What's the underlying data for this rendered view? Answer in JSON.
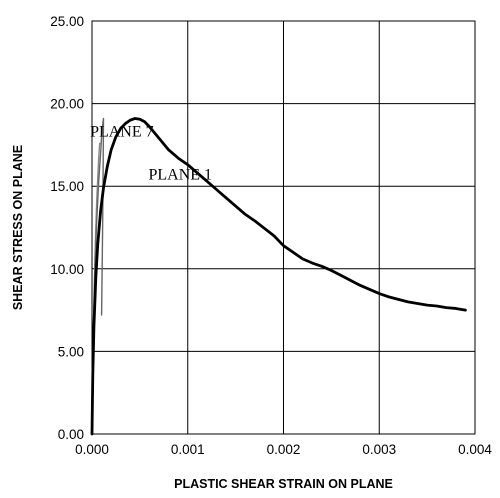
{
  "chart_data": {
    "type": "line",
    "xlabel": "PLASTIC SHEAR  STRAIN ON PLANE",
    "ylabel": "SHEAR STRESS ON PLANE",
    "xlim": [
      0,
      0.004
    ],
    "ylim": [
      0,
      25
    ],
    "x_ticks": [
      0,
      0.001,
      0.002,
      0.003,
      0.004
    ],
    "x_tick_labels": [
      "0.000",
      "0.001",
      "0.002",
      "0.003",
      "0.004"
    ],
    "y_ticks": [
      0,
      5,
      10,
      15,
      20,
      25
    ],
    "y_tick_labels": [
      "0.00",
      "5.00",
      "10.00",
      "15.00",
      "20.00",
      "25.00"
    ],
    "grid": true,
    "legend": "none",
    "annotations": [
      {
        "text": "PLANE 7",
        "x": -2e-05,
        "y": 18.0
      },
      {
        "text": "PLANE 1",
        "x": 0.00059,
        "y": 15.4
      }
    ],
    "series": [
      {
        "color": "#000000",
        "x": [
          0,
          8e-06,
          2e-05,
          4e-05,
          6e-05,
          9e-05,
          0.00012,
          0.00016,
          0.0002,
          0.00025,
          0.0003,
          0.00035,
          0.0004,
          0.00045,
          0.0005,
          0.00055,
          0.0006,
          0.0007,
          0.0008,
          0.0009,
          0.001,
          0.0011,
          0.0012,
          0.0013,
          0.0014,
          0.0015,
          0.0016,
          0.0017,
          0.0018,
          0.0019,
          0.002,
          0.0021,
          0.0022,
          0.0023,
          0.0024,
          0.0025,
          0.0026,
          0.0027,
          0.0028,
          0.0029,
          0.003,
          0.0031,
          0.0032,
          0.0033,
          0.0034,
          0.0035,
          0.0036,
          0.0037,
          0.0038,
          0.0039
        ],
        "y": [
          0,
          3.5,
          6.5,
          9.5,
          11.5,
          13.5,
          14.9,
          16.2,
          17.2,
          18.0,
          18.5,
          18.8,
          19.0,
          19.1,
          19.05,
          18.9,
          18.6,
          17.9,
          17.2,
          16.7,
          16.3,
          15.8,
          15.3,
          14.8,
          14.3,
          13.8,
          13.3,
          12.9,
          12.45,
          12.0,
          11.4,
          11.0,
          10.6,
          10.35,
          10.15,
          9.9,
          9.6,
          9.3,
          9.0,
          8.75,
          8.5,
          8.3,
          8.15,
          8.0,
          7.9,
          7.8,
          7.75,
          7.65,
          7.6,
          7.5
        ]
      },
      {
        "color": "#666666",
        "x": [
          0,
          1.5e-05,
          3e-05,
          5e-05,
          7e-05,
          9e-05,
          0.0001,
          0.00011,
          0.000115,
          0.00012,
          0.000118,
          0.000115,
          0.00011,
          0.000105,
          0.0001
        ],
        "y": [
          0,
          6.0,
          10.0,
          13.0,
          15.3,
          17.0,
          18.0,
          18.6,
          18.9,
          19.1,
          17.5,
          15.0,
          12.0,
          9.5,
          7.2
        ]
      },
      {
        "color": "#888888",
        "x": [
          0,
          1e-05,
          2e-05,
          3e-05,
          4e-05,
          5e-05,
          6e-05,
          7e-05,
          8e-05
        ],
        "y": [
          0,
          5.0,
          8.0,
          10.5,
          12.5,
          14.2,
          15.5,
          16.7,
          17.6
        ]
      }
    ]
  }
}
